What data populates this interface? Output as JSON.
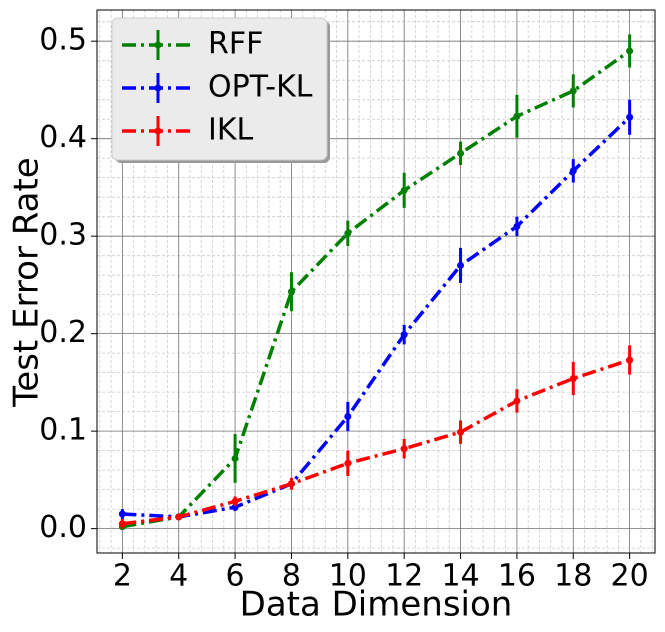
{
  "chart_data": {
    "type": "line",
    "x_label": "Data Dimension",
    "y_label": "Test Error Rate",
    "x": [
      2,
      4,
      6,
      8,
      10,
      12,
      14,
      16,
      18,
      20
    ],
    "series": [
      {
        "name": "RFF",
        "color": "#008000",
        "values": [
          0.002,
          0.012,
          0.072,
          0.243,
          0.303,
          0.347,
          0.385,
          0.423,
          0.449,
          0.49
        ],
        "errors": [
          0.003,
          0.003,
          0.025,
          0.02,
          0.013,
          0.018,
          0.012,
          0.022,
          0.017,
          0.017
        ]
      },
      {
        "name": "OPT-KL",
        "color": "#0000ff",
        "values": [
          0.015,
          0.012,
          0.022,
          0.046,
          0.115,
          0.199,
          0.27,
          0.31,
          0.367,
          0.422
        ],
        "errors": [
          0.005,
          0.003,
          0.004,
          0.005,
          0.015,
          0.01,
          0.018,
          0.01,
          0.012,
          0.018
        ]
      },
      {
        "name": "IKL",
        "color": "#ff0000",
        "values": [
          0.005,
          0.012,
          0.028,
          0.046,
          0.067,
          0.082,
          0.099,
          0.131,
          0.154,
          0.173
        ],
        "errors": [
          0.005,
          0.003,
          0.005,
          0.006,
          0.013,
          0.01,
          0.012,
          0.012,
          0.017,
          0.015
        ]
      }
    ],
    "xlim": [
      1.1,
      20.9
    ],
    "ylim": [
      -0.025,
      0.532
    ],
    "xticks": [
      2,
      4,
      6,
      8,
      10,
      12,
      14,
      16,
      18,
      20
    ],
    "yticks": [
      {
        "value": 0,
        "label": "0.0"
      },
      0.1,
      0.2,
      0.3,
      0.4,
      0.5
    ],
    "grid": true,
    "minor_grid": true,
    "legend": "upper left"
  }
}
